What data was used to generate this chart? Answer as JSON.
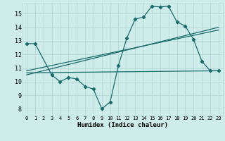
{
  "xlabel": "Humidex (Indice chaleur)",
  "bg_color": "#ceecea",
  "grid_color": "#b8dbd8",
  "line_color": "#1a6b6b",
  "xlim": [
    -0.5,
    23.5
  ],
  "ylim": [
    7.5,
    15.8
  ],
  "xticks": [
    0,
    1,
    2,
    3,
    4,
    5,
    6,
    7,
    8,
    9,
    10,
    11,
    12,
    13,
    14,
    15,
    16,
    17,
    18,
    19,
    20,
    21,
    22,
    23
  ],
  "yticks": [
    8,
    9,
    10,
    11,
    12,
    13,
    14,
    15
  ],
  "series1_x": [
    0,
    1,
    3,
    4,
    5,
    6,
    7,
    8,
    9,
    10,
    11,
    12,
    13,
    14,
    15,
    16,
    17,
    18,
    19,
    20,
    21,
    22,
    23
  ],
  "series1_y": [
    12.8,
    12.8,
    10.5,
    10.0,
    10.3,
    10.2,
    9.65,
    9.45,
    8.0,
    8.5,
    11.2,
    13.2,
    14.6,
    14.75,
    15.55,
    15.5,
    15.55,
    14.4,
    14.1,
    13.1,
    11.5,
    10.8,
    10.8
  ],
  "series2_x": [
    0,
    23
  ],
  "series2_y": [
    10.8,
    13.8
  ],
  "series3_x": [
    0,
    23
  ],
  "series3_y": [
    10.5,
    14.0
  ],
  "series4_x": [
    0,
    23
  ],
  "series4_y": [
    10.65,
    10.8
  ]
}
